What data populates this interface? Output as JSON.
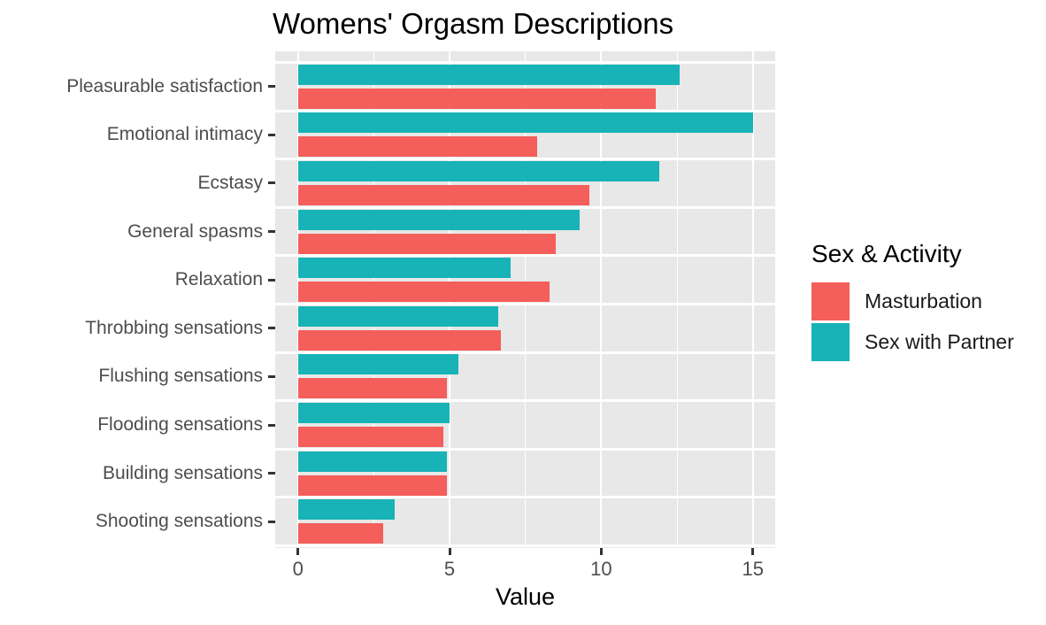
{
  "title": "Womens' Orgasm Descriptions",
  "axes": {
    "x_label": "Value",
    "x_ticks": [
      "0",
      "5",
      "10",
      "15"
    ],
    "x_tick_values": [
      0,
      5,
      10,
      15
    ],
    "x_minor_values": [
      2.5,
      7.5,
      12.5
    ]
  },
  "legend": {
    "title": "Sex & Activity",
    "entries": [
      {
        "label": "Masturbation",
        "color": "#f45e5b"
      },
      {
        "label": "Sex with Partner",
        "color": "#17b3b6"
      }
    ]
  },
  "colors": {
    "masturbation": "#f45e5b",
    "partner": "#17b3b6",
    "panel_background": "#e8e8e8",
    "gridline": "#ffffff",
    "axis_text": "#4d4d4d",
    "tick_mark": "#333333"
  },
  "chart_data": {
    "type": "bar",
    "orientation": "horizontal",
    "title": "Womens' Orgasm Descriptions",
    "xlabel": "Value",
    "ylabel": "",
    "xlim": [
      0,
      15.75
    ],
    "grid": true,
    "legend_title": "Sex & Activity",
    "legend_position": "right",
    "categories": [
      "Pleasurable satisfaction",
      "Emotional intimacy",
      "Ecstasy",
      "General spasms",
      "Relaxation",
      "Throbbing sensations",
      "Flushing sensations",
      "Flooding sensations",
      "Building sensations",
      "Shooting sensations"
    ],
    "series": [
      {
        "name": "Masturbation",
        "color": "#f45e5b",
        "values": [
          11.8,
          7.9,
          9.6,
          8.5,
          8.3,
          6.7,
          4.9,
          4.8,
          4.9,
          2.8
        ]
      },
      {
        "name": "Sex with Partner",
        "color": "#17b3b6",
        "values": [
          12.6,
          15.0,
          11.9,
          9.3,
          7.0,
          6.6,
          5.3,
          5.0,
          4.9,
          3.2
        ]
      }
    ]
  }
}
